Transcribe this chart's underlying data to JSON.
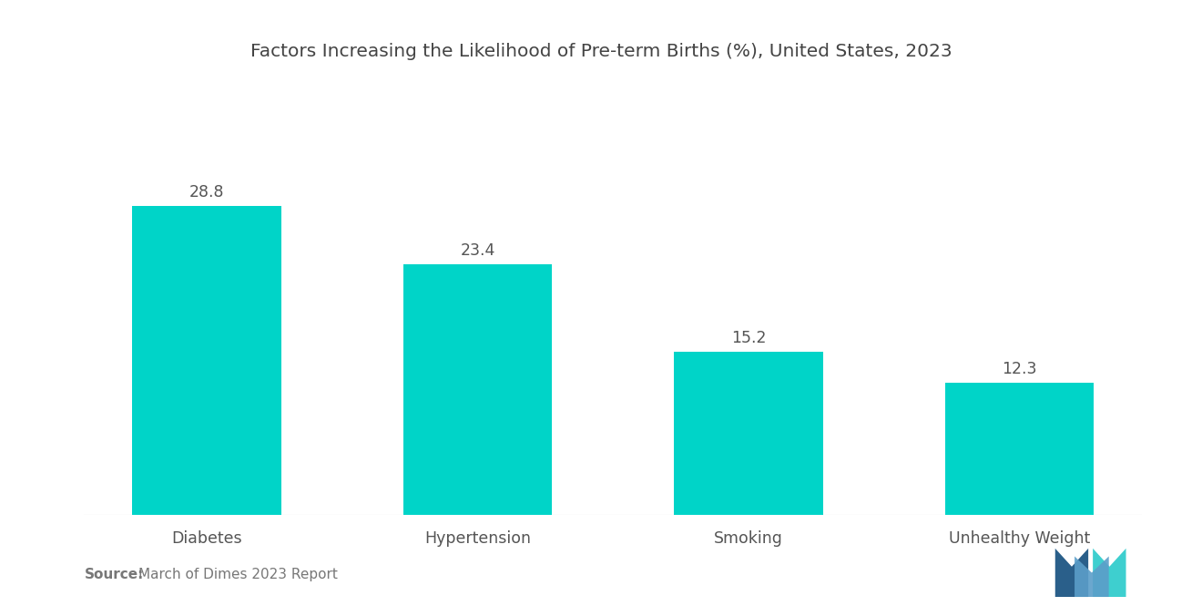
{
  "title": "Factors Increasing the Likelihood of Pre-term Births (%), United States, 2023",
  "categories": [
    "Diabetes",
    "Hypertension",
    "Smoking",
    "Unhealthy Weight"
  ],
  "values": [
    28.8,
    23.4,
    15.2,
    12.3
  ],
  "bar_color": "#00D4C8",
  "background_color": "#ffffff",
  "title_fontsize": 14.5,
  "label_fontsize": 12.5,
  "value_fontsize": 12.5,
  "source_bold": "Source:",
  "source_text": "  March of Dimes 2023 Report",
  "source_fontsize": 11,
  "ylim": [
    0,
    35
  ],
  "bar_width": 0.55,
  "logo_blue": "#2a5f8a",
  "logo_teal": "#3ecfcf",
  "logo_mid": "#5b9ec9"
}
